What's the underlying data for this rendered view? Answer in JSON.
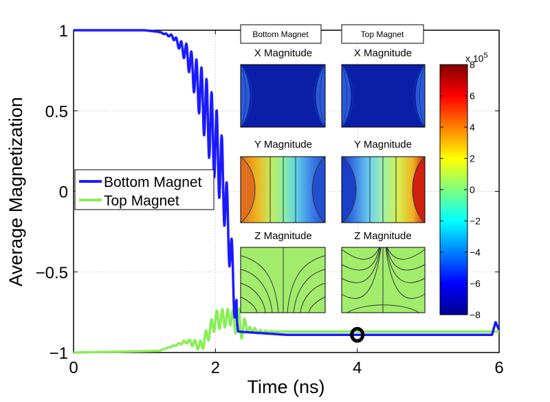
{
  "chart_data": {
    "type": "line",
    "xlabel": "Time (ns)",
    "ylabel": "Average Magnetization",
    "xlim": [
      0,
      6
    ],
    "ylim": [
      -1,
      1
    ],
    "x_ticks": [
      "0",
      "2",
      "4",
      "6"
    ],
    "y_ticks": [
      "1",
      "0.5",
      "0",
      "−0.5",
      "−1"
    ],
    "grid": true,
    "legend_position": "middle-left",
    "series": [
      {
        "name": "Bottom Magnet",
        "color": "#1a1aff",
        "x": [
          0,
          1.0,
          1.2,
          1.4,
          1.6,
          1.8,
          2.0,
          2.1,
          2.2,
          2.28,
          2.32,
          3.0,
          4.0,
          5.0,
          5.9,
          5.95,
          6.0
        ],
        "y": [
          1.0,
          1.0,
          0.99,
          0.96,
          0.85,
          0.6,
          0.3,
          0.1,
          -0.3,
          -0.7,
          -0.87,
          -0.89,
          -0.89,
          -0.89,
          -0.89,
          -0.81,
          -0.86
        ]
      },
      {
        "name": "Top Magnet",
        "color": "#88ee55",
        "x": [
          0,
          1.2,
          1.4,
          1.6,
          1.8,
          2.0,
          2.2,
          2.4,
          2.6,
          3.0,
          4.0,
          5.0,
          6.0
        ],
        "y": [
          -1.0,
          -0.99,
          -0.96,
          -0.93,
          -0.96,
          -0.8,
          -0.78,
          -0.84,
          -0.87,
          -0.87,
          -0.87,
          -0.87,
          -0.87
        ]
      }
    ],
    "marker": {
      "x": 4.0,
      "y": -0.89,
      "shape": "ring"
    },
    "inset": {
      "column_titles": [
        "Bottom Magnet",
        "Top Magnet"
      ],
      "row_titles": [
        "X Magnitude",
        "Y Magnitude",
        "Z Magnitude"
      ],
      "colorbar": {
        "ticks": [
          "8",
          "6",
          "4",
          "2",
          "0",
          "−2",
          "−4",
          "−6",
          "−8"
        ],
        "exponent_prefix": "x 10",
        "exponent": "5",
        "range": [
          -8,
          8
        ]
      }
    }
  }
}
